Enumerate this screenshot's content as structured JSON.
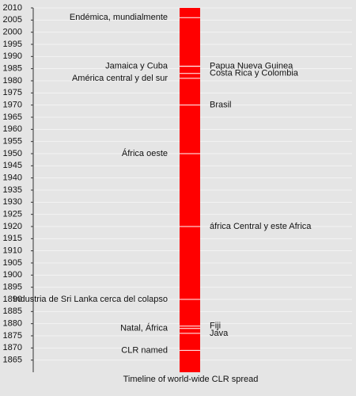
{
  "chart_data": {
    "type": "timeline",
    "xlabel": "Timeline of world-wide CLR spread",
    "ylim": [
      1860,
      2010
    ],
    "yticks": [
      1865,
      1870,
      1875,
      1880,
      1885,
      1890,
      1895,
      1900,
      1905,
      1910,
      1915,
      1920,
      1925,
      1930,
      1935,
      1940,
      1945,
      1950,
      1955,
      1960,
      1965,
      1970,
      1975,
      1980,
      1985,
      1990,
      1995,
      2000,
      2005,
      2010
    ],
    "grid": true,
    "color": "#ff0000",
    "events": [
      {
        "label": "Endémica, mundialmente",
        "year": 2006,
        "side": "left"
      },
      {
        "label": "Jamaica y Cuba",
        "year": 1986,
        "side": "left"
      },
      {
        "label": "Papua Nueva Guinea",
        "year": 1986,
        "side": "right"
      },
      {
        "label": "Costa Rica y Colombia",
        "year": 1983,
        "side": "right"
      },
      {
        "label": "América central y del sur",
        "year": 1981,
        "side": "left"
      },
      {
        "label": "Brasil",
        "year": 1970,
        "side": "right"
      },
      {
        "label": "África oeste",
        "year": 1950,
        "side": "left"
      },
      {
        "label": "áfrica Central y este Africa",
        "year": 1920,
        "side": "right"
      },
      {
        "label": "Industria de Sri Lanka cerca del colapso",
        "year": 1890,
        "side": "left"
      },
      {
        "label": "Fiji",
        "year": 1879,
        "side": "right"
      },
      {
        "label": "Natal, África",
        "year": 1878,
        "side": "left"
      },
      {
        "label": "Java",
        "year": 1876,
        "side": "right"
      },
      {
        "label": "CLR named",
        "year": 1869,
        "side": "left"
      }
    ]
  }
}
